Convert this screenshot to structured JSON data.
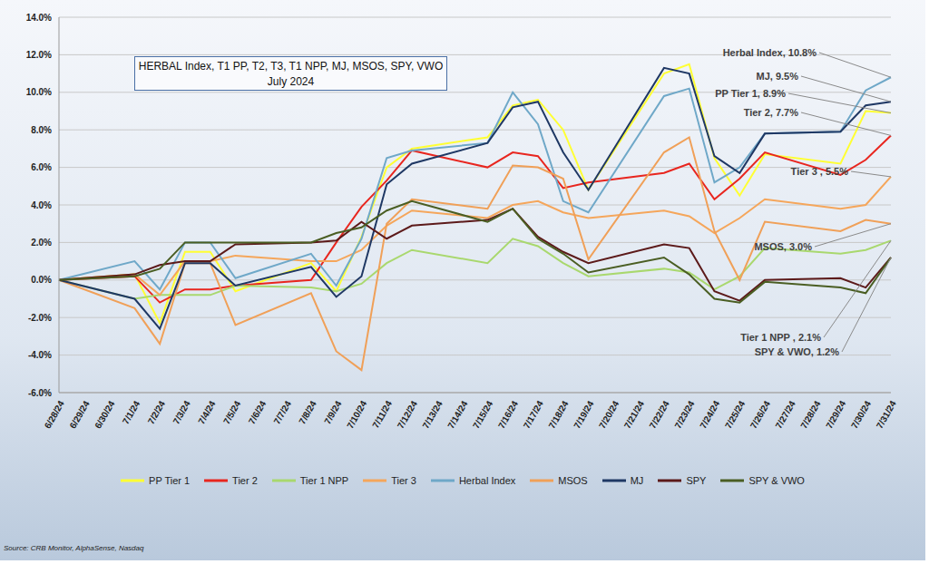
{
  "chart_data": {
    "type": "line",
    "title": "HERBAL Index, T1 PP, T2, T3, T1 NPP, MJ, MSOS, SPY, VWO",
    "subtitle": "July 2024",
    "source": "Source: CRB Monitor, AlphaSense, Nasdaq",
    "categories": [
      "6/28/24",
      "6/29/24",
      "6/30/24",
      "7/1/24",
      "7/2/24",
      "7/3/24",
      "7/4/24",
      "7/5/24",
      "7/6/24",
      "7/7/24",
      "7/8/24",
      "7/9/24",
      "7/10/24",
      "7/11/24",
      "7/12/24",
      "7/13/24",
      "7/14/24",
      "7/15/24",
      "7/16/24",
      "7/17/24",
      "7/18/24",
      "7/19/24",
      "7/20/24",
      "7/21/24",
      "7/22/24",
      "7/23/24",
      "7/24/24",
      "7/25/24",
      "7/26/24",
      "7/27/24",
      "7/28/24",
      "7/29/24",
      "7/30/24",
      "7/31/24"
    ],
    "series": [
      {
        "name": "PP Tier 1",
        "color": "#ffff33",
        "values": [
          0,
          null,
          null,
          0.3,
          -2.3,
          1.5,
          1.5,
          -0.6,
          null,
          null,
          0.9,
          -0.6,
          2.3,
          6.0,
          7.0,
          null,
          null,
          7.6,
          9.3,
          9.6,
          8.0,
          4.8,
          null,
          null,
          11.0,
          11.5,
          6.5,
          4.5,
          6.7,
          null,
          null,
          6.2,
          9.0,
          8.9
        ]
      },
      {
        "name": "Tier 2",
        "color": "#e8261f",
        "values": [
          0,
          null,
          null,
          0.2,
          -1.2,
          -0.5,
          -0.5,
          -0.3,
          null,
          null,
          0.0,
          2.0,
          3.9,
          5.3,
          6.9,
          null,
          null,
          6.0,
          6.8,
          6.6,
          4.9,
          5.2,
          null,
          null,
          5.7,
          6.2,
          4.3,
          5.4,
          6.8,
          null,
          null,
          5.6,
          6.4,
          7.7
        ]
      },
      {
        "name": "Tier 1 NPP",
        "color": "#a9d86e",
        "values": [
          0,
          null,
          null,
          -1.0,
          -0.8,
          -0.8,
          -0.8,
          -0.3,
          null,
          null,
          -0.4,
          -0.6,
          -0.2,
          0.9,
          1.6,
          null,
          null,
          0.9,
          2.2,
          1.8,
          0.9,
          0.2,
          null,
          null,
          0.6,
          0.4,
          -0.5,
          0.2,
          1.7,
          null,
          null,
          1.4,
          1.6,
          2.1
        ]
      },
      {
        "name": "Tier 3",
        "color": "#f5a65b",
        "values": [
          0,
          null,
          null,
          0.3,
          -0.8,
          1.0,
          1.0,
          1.3,
          null,
          null,
          1.0,
          1.0,
          1.6,
          2.9,
          3.7,
          null,
          null,
          3.3,
          4.0,
          4.2,
          3.6,
          3.3,
          null,
          null,
          3.7,
          3.4,
          2.5,
          3.3,
          4.3,
          null,
          null,
          3.8,
          4.0,
          5.5
        ]
      },
      {
        "name": "Herbal Index",
        "color": "#6fa8c8",
        "values": [
          0,
          null,
          null,
          1.0,
          -0.5,
          2.0,
          2.0,
          0.1,
          null,
          null,
          1.4,
          -0.3,
          2.2,
          6.5,
          6.9,
          null,
          null,
          7.3,
          10.0,
          8.3,
          4.2,
          3.6,
          null,
          null,
          9.8,
          10.2,
          5.2,
          6.0,
          7.8,
          null,
          null,
          7.9,
          10.1,
          10.8
        ]
      },
      {
        "name": "MSOS",
        "color": "#f0a058",
        "values": [
          0,
          null,
          null,
          -1.5,
          -3.4,
          0.9,
          0.9,
          -2.4,
          null,
          null,
          -0.7,
          -3.8,
          -4.8,
          3.0,
          4.3,
          null,
          null,
          3.8,
          6.1,
          6.0,
          5.4,
          1.1,
          null,
          null,
          6.8,
          7.6,
          2.6,
          0.0,
          3.1,
          null,
          null,
          2.6,
          3.2,
          3.0
        ]
      },
      {
        "name": "MJ",
        "color": "#1f3864",
        "values": [
          0,
          null,
          null,
          -1.0,
          -2.6,
          0.9,
          0.9,
          -0.3,
          null,
          null,
          0.7,
          -0.9,
          0.2,
          5.1,
          6.2,
          null,
          null,
          7.3,
          9.2,
          9.5,
          6.8,
          4.8,
          null,
          null,
          11.3,
          11.0,
          6.6,
          5.7,
          7.8,
          null,
          null,
          7.9,
          9.3,
          9.5
        ]
      },
      {
        "name": "SPY",
        "color": "#5c1a1a",
        "values": [
          0,
          null,
          null,
          0.3,
          0.8,
          1.0,
          1.0,
          1.9,
          null,
          null,
          2.0,
          2.1,
          3.1,
          2.2,
          2.9,
          null,
          null,
          3.2,
          3.8,
          2.3,
          1.5,
          0.9,
          null,
          null,
          1.9,
          1.7,
          -0.6,
          -1.1,
          0.0,
          null,
          null,
          0.1,
          -0.4,
          1.2
        ]
      },
      {
        "name": "SPY & VWO",
        "color": "#4a5e23",
        "values": [
          0,
          null,
          null,
          0.2,
          0.6,
          2.0,
          2.0,
          2.0,
          null,
          null,
          2.0,
          2.5,
          2.8,
          3.7,
          4.2,
          null,
          null,
          3.1,
          3.8,
          2.2,
          1.4,
          0.4,
          null,
          null,
          1.2,
          0.3,
          -1.0,
          -1.2,
          -0.1,
          null,
          null,
          -0.4,
          -0.7,
          1.2
        ]
      }
    ],
    "ylim": [
      -6,
      14
    ],
    "yticks": [
      {
        "value": -6,
        "label": "-6.0%"
      },
      {
        "value": -4,
        "label": "-4.0%"
      },
      {
        "value": -2,
        "label": "-2.0%"
      },
      {
        "value": 0,
        "label": "0.0%"
      },
      {
        "value": 2,
        "label": "2.0%"
      },
      {
        "value": 4,
        "label": "4.0%"
      },
      {
        "value": 6,
        "label": "6.0%"
      },
      {
        "value": 8,
        "label": "8.0%"
      },
      {
        "value": 10,
        "label": "10.0%"
      },
      {
        "value": 12,
        "label": "12.0%"
      },
      {
        "value": 14,
        "label": "14.0%"
      }
    ],
    "grid": true,
    "legend": "bottom",
    "annotations": [
      {
        "text": "Herbal Index, 10.8%",
        "series": "Herbal Index"
      },
      {
        "text": "MJ, 9.5%",
        "series": "MJ"
      },
      {
        "text": "PP Tier 1, 8.9%",
        "series": "PP Tier 1"
      },
      {
        "text": "Tier 2, 7.7%",
        "series": "Tier 2"
      },
      {
        "text": "Tier 3 , 5.5%",
        "series": "Tier 3"
      },
      {
        "text": "MSOS, 3.0%",
        "series": "MSOS"
      },
      {
        "text": "Tier 1 NPP , 2.1%",
        "series": "Tier 1 NPP"
      },
      {
        "text": "SPY & VWO, 1.2%",
        "series": "SPY & VWO"
      }
    ]
  }
}
